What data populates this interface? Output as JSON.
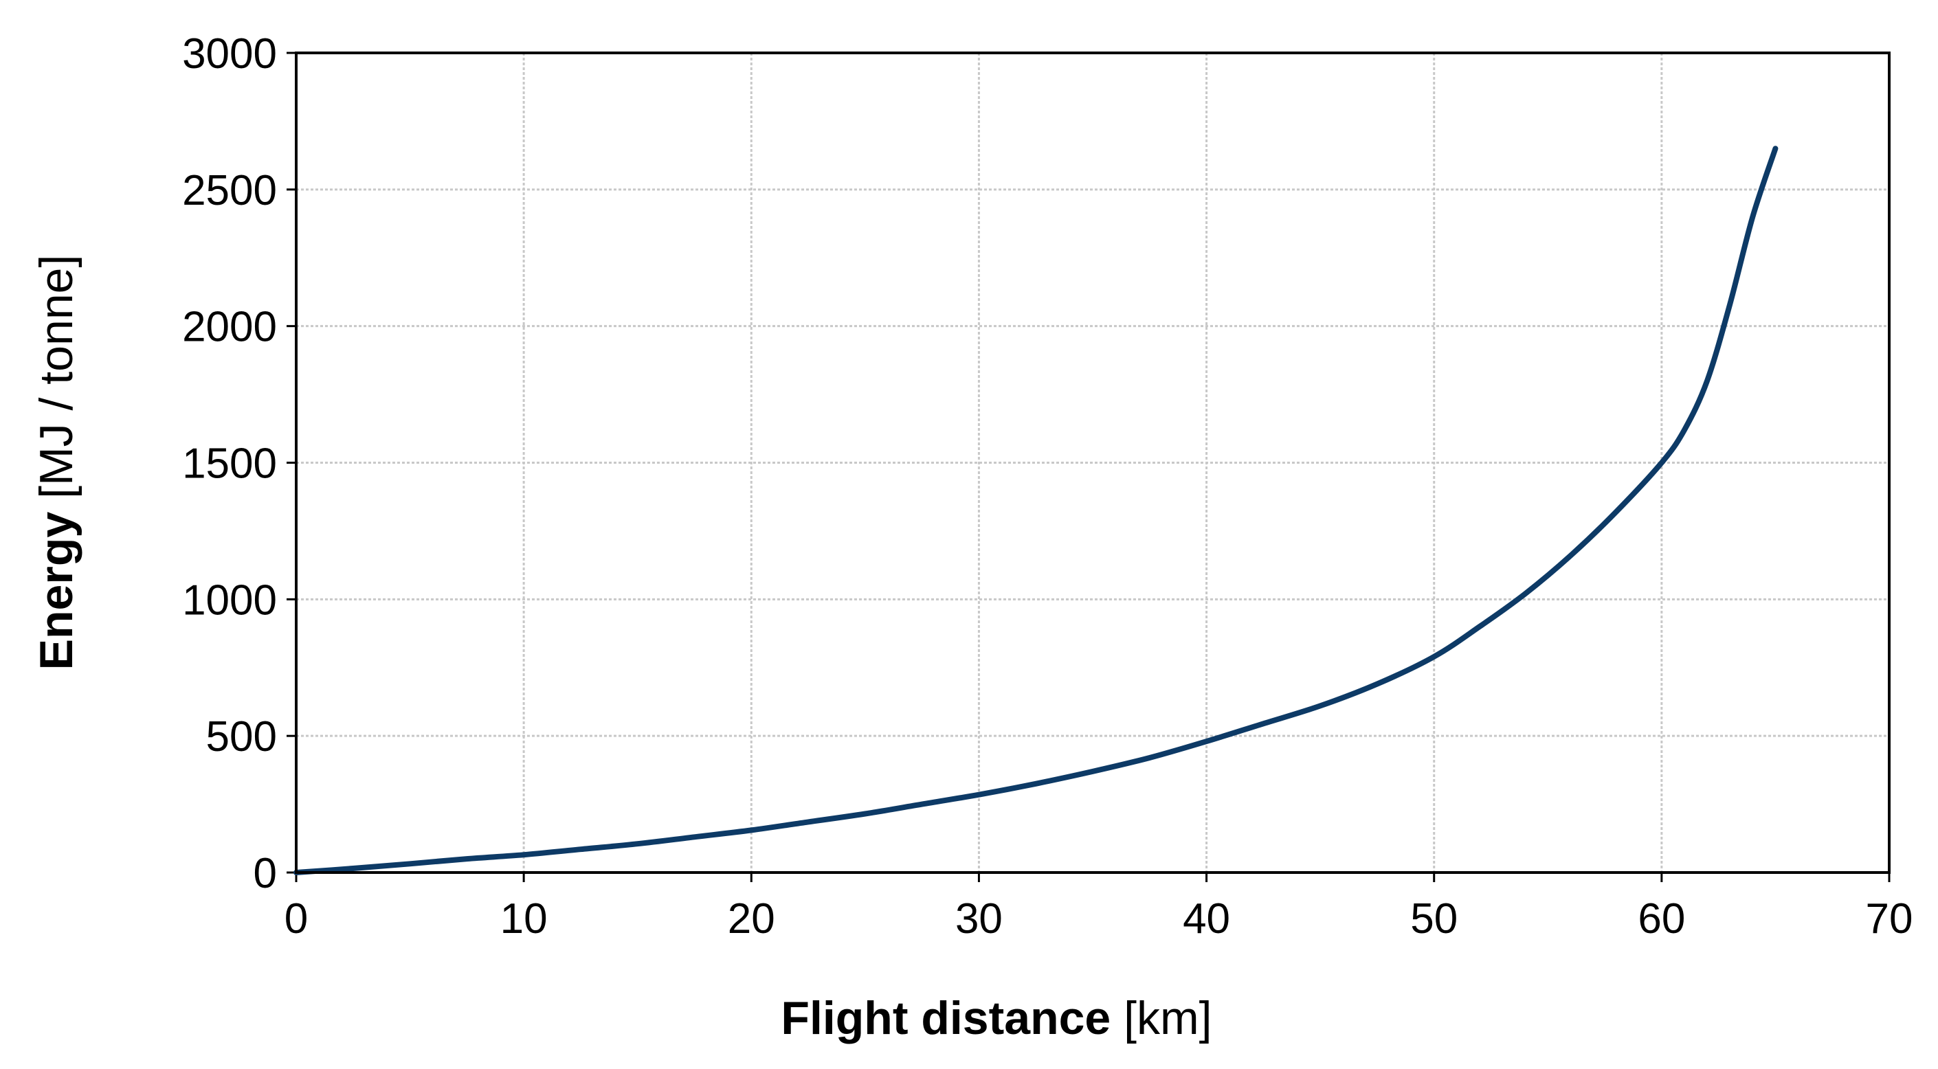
{
  "chart_data": {
    "type": "line",
    "xlabel": {
      "bold": "Flight distance",
      "unit": " [km]"
    },
    "ylabel": {
      "bold": "Energy",
      "unit": " [MJ / tonne]"
    },
    "xlim": [
      0,
      70
    ],
    "ylim": [
      0,
      3000
    ],
    "xticks": [
      "0",
      "10",
      "20",
      "30",
      "40",
      "50",
      "60",
      "70"
    ],
    "yticks": [
      "0",
      "500",
      "1000",
      "1500",
      "2000",
      "2500",
      "3000"
    ],
    "grid": true,
    "legend": "none",
    "line_color": "#0d3a66",
    "series": [
      {
        "x": [
          0,
          2.5,
          5,
          7.5,
          10,
          12.5,
          15,
          17.5,
          20,
          22.5,
          25,
          27.5,
          30,
          32.5,
          35,
          37.5,
          40,
          42.5,
          45,
          47.5,
          50,
          52,
          54,
          56,
          58,
          60,
          61,
          62,
          63,
          64,
          65
        ],
        "y": [
          0,
          15,
          32,
          50,
          65,
          85,
          105,
          130,
          155,
          185,
          215,
          250,
          285,
          325,
          370,
          420,
          480,
          545,
          610,
          690,
          790,
          900,
          1020,
          1160,
          1320,
          1500,
          1620,
          1800,
          2080,
          2400,
          2650
        ]
      }
    ]
  }
}
